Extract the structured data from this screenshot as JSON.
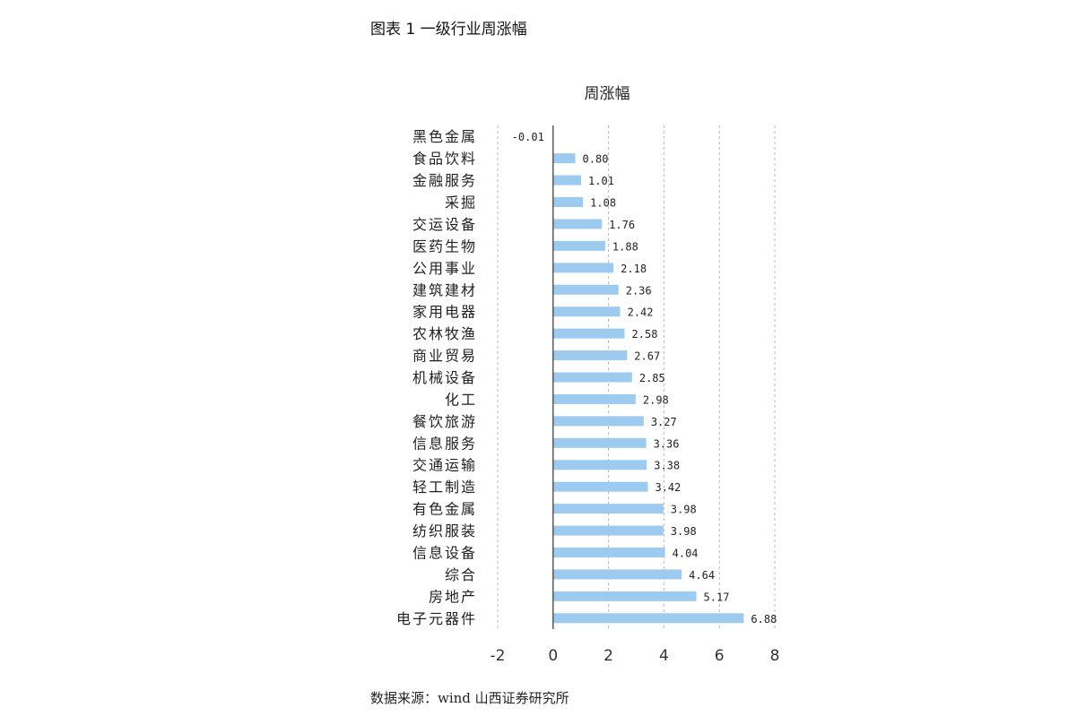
{
  "caption": "图表 1 一级行业周涨幅",
  "source": "数据来源：wind 山西证券研究所",
  "chart_data": {
    "type": "bar",
    "orientation": "horizontal",
    "title": "周涨幅",
    "categories": [
      "黑色金属",
      "食品饮料",
      "金融服务",
      "采掘",
      "交运设备",
      "医药生物",
      "公用事业",
      "建筑建材",
      "家用电器",
      "农林牧渔",
      "商业贸易",
      "机械设备",
      "化工",
      "餐饮旅游",
      "信息服务",
      "交通运输",
      "轻工制造",
      "有色金属",
      "纺织服装",
      "信息设备",
      "综合",
      "房地产",
      "电子元器件"
    ],
    "values": [
      -0.01,
      0.8,
      1.01,
      1.08,
      1.76,
      1.88,
      2.18,
      2.36,
      2.42,
      2.58,
      2.67,
      2.85,
      2.98,
      3.27,
      3.36,
      3.38,
      3.42,
      3.98,
      3.98,
      4.04,
      4.64,
      5.17,
      6.88
    ],
    "data_labels": [
      "-0.01",
      "0.80",
      "1.01",
      "1.08",
      "1.76",
      "1.88",
      "2.18",
      "2.36",
      "2.42",
      "2.58",
      "2.67",
      "2.85",
      "2.98",
      "3.27",
      "3.36",
      "3.38",
      "3.42",
      "3.98",
      "3.98",
      "4.04",
      "4.64",
      "5.17",
      "6.88"
    ],
    "xlim": [
      -2,
      8
    ],
    "xticks": [
      -2,
      0,
      2,
      4,
      6,
      8
    ],
    "xtick_labels": [
      "-2",
      "0",
      "2",
      "4",
      "6",
      "8"
    ],
    "grid": "vertical dashed",
    "legend": "none",
    "bar_color": "#9DCBF0"
  }
}
